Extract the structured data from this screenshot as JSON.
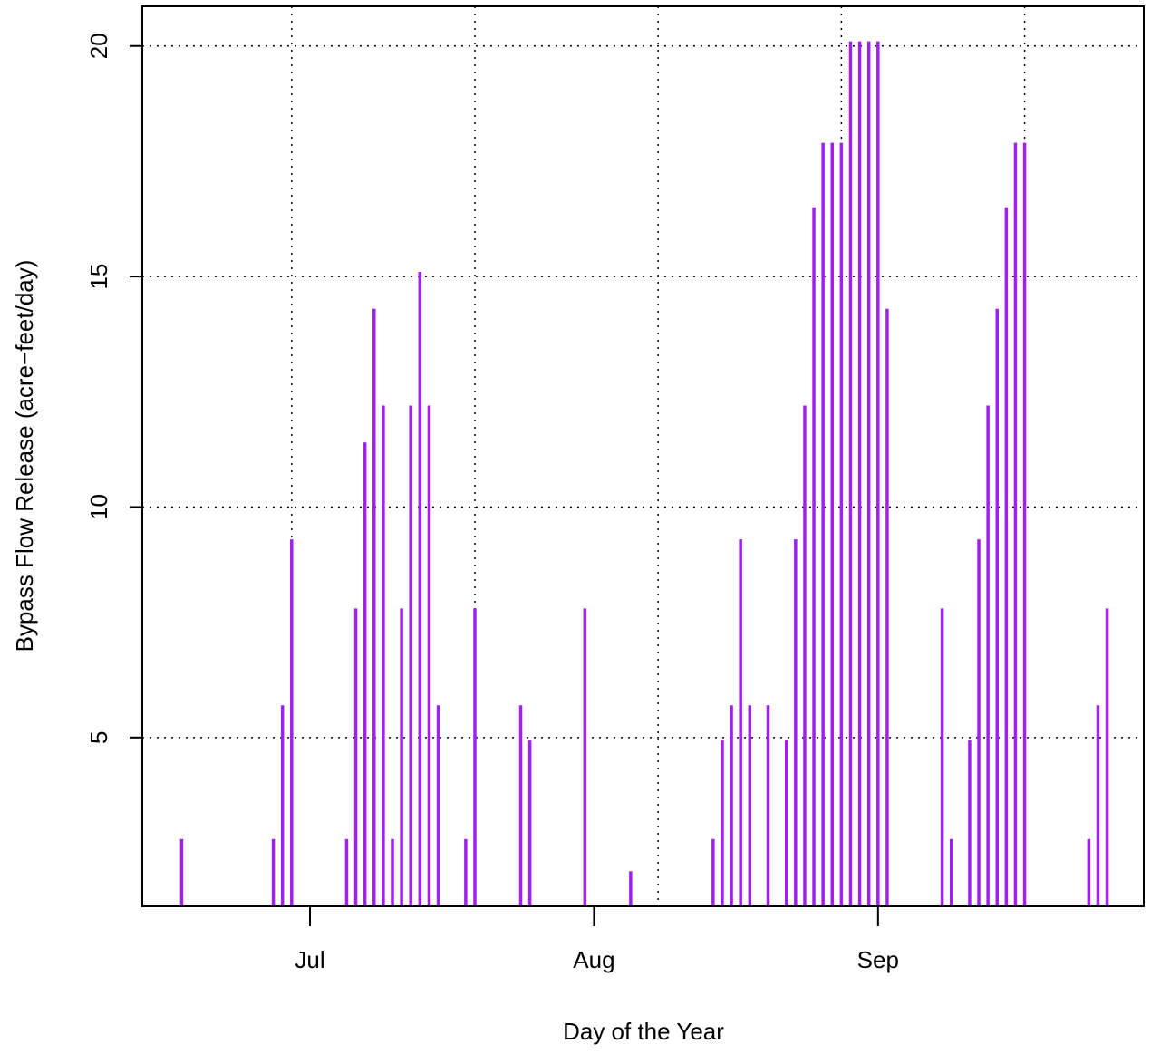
{
  "chart_data": {
    "type": "bar",
    "xlabel": "Day of the Year",
    "ylabel": "Bypass Flow Release  (acre−feet/day)",
    "x": [
      168,
      178,
      179,
      180,
      186,
      187,
      188,
      189,
      190,
      191,
      192,
      193,
      194,
      195,
      196,
      199,
      200,
      205,
      206,
      212,
      217,
      226,
      227,
      228,
      229,
      230,
      232,
      234,
      235,
      236,
      237,
      238,
      239,
      240,
      241,
      242,
      243,
      244,
      245,
      251,
      252,
      254,
      255,
      256,
      257,
      258,
      259,
      260,
      267,
      268,
      269
    ],
    "values": [
      2.8,
      2.8,
      5.7,
      9.3,
      2.8,
      7.8,
      11.4,
      14.3,
      12.2,
      2.8,
      7.8,
      12.2,
      15.1,
      12.2,
      5.7,
      2.8,
      7.8,
      5.7,
      4.95,
      7.8,
      2.1,
      2.8,
      4.95,
      5.7,
      9.3,
      5.7,
      5.7,
      4.95,
      9.3,
      12.2,
      16.5,
      17.9,
      17.9,
      17.9,
      20.1,
      20.1,
      20.1,
      20.1,
      14.3,
      7.8,
      2.8,
      4.95,
      9.3,
      12.2,
      14.3,
      16.5,
      17.9,
      17.9,
      2.8,
      5.7,
      7.8
    ],
    "color": "#a020f0",
    "xlim": [
      163.7,
      273.0
    ],
    "ylim": [
      1.34,
      20.86
    ],
    "xticks": [
      {
        "value": 182,
        "label": "Jul"
      },
      {
        "value": 213,
        "label": "Aug"
      },
      {
        "value": 244,
        "label": "Sep"
      }
    ],
    "yticks": [
      5,
      10,
      15,
      20
    ],
    "xgrid": [
      180,
      200,
      220,
      240,
      260
    ],
    "grid": true
  }
}
